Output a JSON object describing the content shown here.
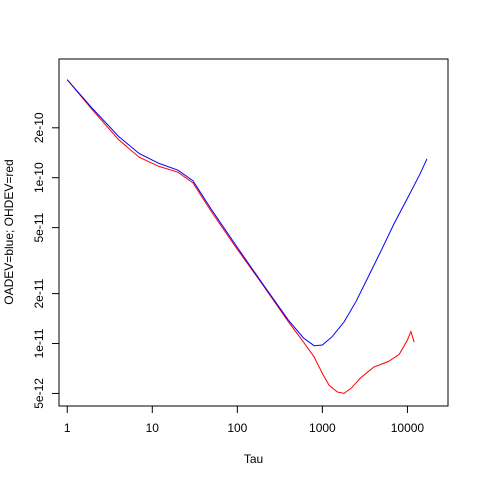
{
  "chart_data": {
    "type": "line",
    "title": "",
    "xlabel": "Tau",
    "ylabel": "OADEV=blue; OHDEV=red",
    "xscale": "log",
    "yscale": "log",
    "xlim": [
      0.8,
      30000
    ],
    "ylim": [
      4.2e-12,
      5.2e-10
    ],
    "grid": false,
    "legend": "none",
    "x_ticks": [
      {
        "value": 1,
        "label": "1"
      },
      {
        "value": 10,
        "label": "10"
      },
      {
        "value": 100,
        "label": "100"
      },
      {
        "value": 1000,
        "label": "1000"
      },
      {
        "value": 10000,
        "label": "10000"
      }
    ],
    "y_ticks": [
      {
        "value": 5e-12,
        "label": "5e-12"
      },
      {
        "value": 1e-11,
        "label": "1e-11"
      },
      {
        "value": 2e-11,
        "label": "2e-11"
      },
      {
        "value": 5e-11,
        "label": "5e-11"
      },
      {
        "value": 1e-10,
        "label": "1e-10"
      },
      {
        "value": 2e-10,
        "label": "2e-10"
      }
    ],
    "series": [
      {
        "color": "#ff0000",
        "x": [
          1,
          2,
          4,
          7,
          12,
          20,
          30,
          50,
          100,
          200,
          400,
          600,
          800,
          1000,
          1200,
          1500,
          1800,
          2200,
          2800,
          4000,
          6000,
          8000,
          10000,
          11000,
          12000
        ],
        "y": [
          3.9e-10,
          2.55e-10,
          1.7e-10,
          1.33e-10,
          1.17e-10,
          1.08e-10,
          9.3e-11,
          6.2e-11,
          3.7e-11,
          2.25e-11,
          1.35e-11,
          1.02e-11,
          8.3e-12,
          6.6e-12,
          5.6e-12,
          5.1e-12,
          5e-12,
          5.4e-12,
          6.2e-12,
          7.2e-12,
          7.8e-12,
          8.6e-12,
          1.05e-11,
          1.18e-11,
          1.02e-11
        ]
      },
      {
        "color": "#0000ff",
        "x": [
          1,
          2,
          4,
          7,
          12,
          20,
          30,
          50,
          100,
          200,
          400,
          600,
          800,
          1000,
          1300,
          1800,
          2500,
          3500,
          5000,
          7000,
          10000,
          14000,
          17000
        ],
        "y": [
          3.9e-10,
          2.6e-10,
          1.78e-10,
          1.4e-10,
          1.22e-10,
          1.11e-10,
          9.6e-11,
          6.4e-11,
          3.8e-11,
          2.28e-11,
          1.38e-11,
          1.08e-11,
          9.7e-12,
          9.8e-12,
          1.1e-11,
          1.35e-11,
          1.8e-11,
          2.55e-11,
          3.7e-11,
          5.3e-11,
          7.5e-11,
          1.05e-10,
          1.3e-10
        ]
      }
    ]
  }
}
